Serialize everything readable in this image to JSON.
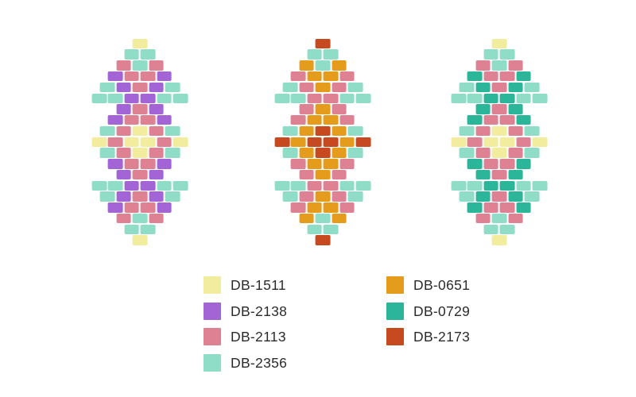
{
  "colors": {
    "DB-1511": "#F2ED9E",
    "DB-2138": "#A365D6",
    "DB-2113": "#DD8193",
    "DB-2356": "#8FDCC7",
    "DB-0651": "#E59B1C",
    "DB-0729": "#2BB69A",
    "DB-2173": "#C7491F"
  },
  "patterns": [
    {
      "name": "bead-motif-left",
      "rows": [
        [
          "DB-1511"
        ],
        [
          "DB-2356",
          "DB-2356"
        ],
        [
          "DB-2113",
          "DB-2356",
          "DB-2113"
        ],
        [
          "DB-2138",
          "DB-2113",
          "DB-2113",
          "DB-2138"
        ],
        [
          "DB-2356",
          "DB-2138",
          "DB-2113",
          "DB-2138",
          "DB-2356"
        ],
        [
          "DB-2356",
          "DB-2356",
          "DB-2138",
          "DB-2138",
          "DB-2356",
          "DB-2356"
        ],
        [
          "DB-2138",
          "DB-2113",
          "DB-2138"
        ],
        [
          "DB-2138",
          "DB-2113",
          "DB-2113",
          "DB-2138"
        ],
        [
          "DB-2356",
          "DB-2113",
          "DB-1511",
          "DB-2113",
          "DB-2356"
        ],
        [
          "DB-1511",
          "DB-2113",
          "DB-1511",
          "DB-1511",
          "DB-2113",
          "DB-1511"
        ],
        [
          "DB-2356",
          "DB-2113",
          "DB-1511",
          "DB-2113",
          "DB-2356"
        ],
        [
          "DB-2138",
          "DB-2113",
          "DB-2113",
          "DB-2138"
        ],
        [
          "DB-2138",
          "DB-2113",
          "DB-2138"
        ],
        [
          "DB-2356",
          "DB-2356",
          "DB-2138",
          "DB-2138",
          "DB-2356",
          "DB-2356"
        ],
        [
          "DB-2356",
          "DB-2138",
          "DB-2113",
          "DB-2138",
          "DB-2356"
        ],
        [
          "DB-2138",
          "DB-2113",
          "DB-2113",
          "DB-2138"
        ],
        [
          "DB-2113",
          "DB-2356",
          "DB-2113"
        ],
        [
          "DB-2356",
          "DB-2356"
        ],
        [
          "DB-1511"
        ]
      ]
    },
    {
      "name": "bead-motif-middle",
      "rows": [
        [
          "DB-2173"
        ],
        [
          "DB-2356",
          "DB-2356"
        ],
        [
          "DB-0651",
          "DB-2356",
          "DB-0651"
        ],
        [
          "DB-2113",
          "DB-0651",
          "DB-0651",
          "DB-2113"
        ],
        [
          "DB-2356",
          "DB-2113",
          "DB-0651",
          "DB-2113",
          "DB-2356"
        ],
        [
          "DB-2356",
          "DB-2356",
          "DB-2113",
          "DB-2113",
          "DB-2356",
          "DB-2356"
        ],
        [
          "DB-2113",
          "DB-0651",
          "DB-2113"
        ],
        [
          "DB-2113",
          "DB-0651",
          "DB-0651",
          "DB-2113"
        ],
        [
          "DB-2356",
          "DB-0651",
          "DB-2173",
          "DB-0651",
          "DB-2356"
        ],
        [
          "DB-2173",
          "DB-0651",
          "DB-2173",
          "DB-2173",
          "DB-0651",
          "DB-2173"
        ],
        [
          "DB-2356",
          "DB-0651",
          "DB-2173",
          "DB-0651",
          "DB-2356"
        ],
        [
          "DB-2113",
          "DB-0651",
          "DB-0651",
          "DB-2113"
        ],
        [
          "DB-2113",
          "DB-0651",
          "DB-2113"
        ],
        [
          "DB-2356",
          "DB-2356",
          "DB-2113",
          "DB-2113",
          "DB-2356",
          "DB-2356"
        ],
        [
          "DB-2356",
          "DB-2113",
          "DB-0651",
          "DB-2113",
          "DB-2356"
        ],
        [
          "DB-2113",
          "DB-0651",
          "DB-0651",
          "DB-2113"
        ],
        [
          "DB-0651",
          "DB-2356",
          "DB-0651"
        ],
        [
          "DB-2356",
          "DB-2356"
        ],
        [
          "DB-2173"
        ]
      ]
    },
    {
      "name": "bead-motif-right",
      "rows": [
        [
          "DB-1511"
        ],
        [
          "DB-2356",
          "DB-2356"
        ],
        [
          "DB-2113",
          "DB-2356",
          "DB-2113"
        ],
        [
          "DB-0729",
          "DB-2113",
          "DB-2113",
          "DB-0729"
        ],
        [
          "DB-2356",
          "DB-0729",
          "DB-2113",
          "DB-0729",
          "DB-2356"
        ],
        [
          "DB-2356",
          "DB-2356",
          "DB-0729",
          "DB-0729",
          "DB-2356",
          "DB-2356"
        ],
        [
          "DB-0729",
          "DB-2113",
          "DB-0729"
        ],
        [
          "DB-0729",
          "DB-2113",
          "DB-2113",
          "DB-0729"
        ],
        [
          "DB-2356",
          "DB-2113",
          "DB-1511",
          "DB-2113",
          "DB-2356"
        ],
        [
          "DB-1511",
          "DB-2113",
          "DB-1511",
          "DB-1511",
          "DB-2113",
          "DB-1511"
        ],
        [
          "DB-2356",
          "DB-2113",
          "DB-1511",
          "DB-2113",
          "DB-2356"
        ],
        [
          "DB-0729",
          "DB-2113",
          "DB-2113",
          "DB-0729"
        ],
        [
          "DB-0729",
          "DB-2113",
          "DB-0729"
        ],
        [
          "DB-2356",
          "DB-2356",
          "DB-0729",
          "DB-0729",
          "DB-2356",
          "DB-2356"
        ],
        [
          "DB-2356",
          "DB-0729",
          "DB-2113",
          "DB-0729",
          "DB-2356"
        ],
        [
          "DB-0729",
          "DB-2113",
          "DB-2113",
          "DB-0729"
        ],
        [
          "DB-2113",
          "DB-2356",
          "DB-2113"
        ],
        [
          "DB-2356",
          "DB-2356"
        ],
        [
          "DB-1511"
        ]
      ]
    }
  ],
  "legend": {
    "text_color": "#2b2b2b",
    "columns": [
      {
        "items": [
          "DB-1511",
          "DB-2138",
          "DB-2113",
          "DB-2356"
        ]
      },
      {
        "items": [
          "DB-0651",
          "DB-0729",
          "DB-2173"
        ]
      }
    ]
  }
}
